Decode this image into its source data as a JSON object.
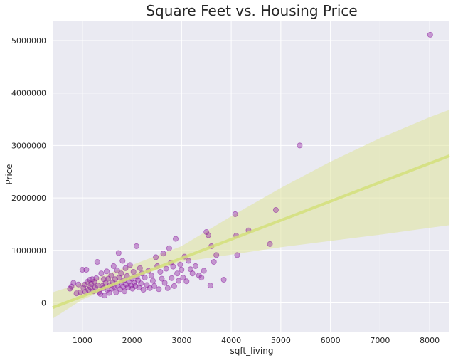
{
  "chart_data": {
    "type": "scatter",
    "title": "Square Feet vs. Housing Price",
    "xlabel": "sqft_living",
    "ylabel": "Price",
    "xlim": [
      400,
      8400
    ],
    "ylim": [
      -550000,
      5380000
    ],
    "xticks": [
      1000,
      2000,
      3000,
      4000,
      5000,
      6000,
      7000,
      8000
    ],
    "yticks": [
      0,
      1000000,
      2000000,
      3000000,
      4000000,
      5000000
    ],
    "grid": true,
    "background": "#eaeaf2",
    "point_color": "#8b1a9e",
    "line_color": "#d4df7a",
    "band_color": "#dfe39a",
    "points": [
      {
        "x": 750,
        "y": 270000
      },
      {
        "x": 780,
        "y": 310000
      },
      {
        "x": 820,
        "y": 380000
      },
      {
        "x": 880,
        "y": 180000
      },
      {
        "x": 920,
        "y": 350000
      },
      {
        "x": 960,
        "y": 200000
      },
      {
        "x": 1000,
        "y": 630000
      },
      {
        "x": 1020,
        "y": 290000
      },
      {
        "x": 1050,
        "y": 350000
      },
      {
        "x": 1060,
        "y": 210000
      },
      {
        "x": 1080,
        "y": 630000
      },
      {
        "x": 1100,
        "y": 400000
      },
      {
        "x": 1120,
        "y": 250000
      },
      {
        "x": 1150,
        "y": 440000
      },
      {
        "x": 1160,
        "y": 300000
      },
      {
        "x": 1180,
        "y": 360000
      },
      {
        "x": 1200,
        "y": 450000
      },
      {
        "x": 1220,
        "y": 220000
      },
      {
        "x": 1240,
        "y": 400000
      },
      {
        "x": 1260,
        "y": 290000
      },
      {
        "x": 1280,
        "y": 470000
      },
      {
        "x": 1300,
        "y": 780000
      },
      {
        "x": 1310,
        "y": 330000
      },
      {
        "x": 1340,
        "y": 210000
      },
      {
        "x": 1360,
        "y": 170000
      },
      {
        "x": 1380,
        "y": 560000
      },
      {
        "x": 1400,
        "y": 320000
      },
      {
        "x": 1420,
        "y": 280000
      },
      {
        "x": 1430,
        "y": 450000
      },
      {
        "x": 1450,
        "y": 140000
      },
      {
        "x": 1470,
        "y": 380000
      },
      {
        "x": 1490,
        "y": 600000
      },
      {
        "x": 1500,
        "y": 250000
      },
      {
        "x": 1520,
        "y": 460000
      },
      {
        "x": 1540,
        "y": 190000
      },
      {
        "x": 1560,
        "y": 340000
      },
      {
        "x": 1580,
        "y": 520000
      },
      {
        "x": 1600,
        "y": 270000
      },
      {
        "x": 1610,
        "y": 390000
      },
      {
        "x": 1630,
        "y": 700000
      },
      {
        "x": 1650,
        "y": 300000
      },
      {
        "x": 1660,
        "y": 450000
      },
      {
        "x": 1680,
        "y": 200000
      },
      {
        "x": 1700,
        "y": 620000
      },
      {
        "x": 1710,
        "y": 330000
      },
      {
        "x": 1730,
        "y": 950000
      },
      {
        "x": 1740,
        "y": 480000
      },
      {
        "x": 1760,
        "y": 260000
      },
      {
        "x": 1780,
        "y": 560000
      },
      {
        "x": 1790,
        "y": 380000
      },
      {
        "x": 1810,
        "y": 800000
      },
      {
        "x": 1820,
        "y": 310000
      },
      {
        "x": 1840,
        "y": 430000
      },
      {
        "x": 1850,
        "y": 220000
      },
      {
        "x": 1870,
        "y": 660000
      },
      {
        "x": 1880,
        "y": 350000
      },
      {
        "x": 1900,
        "y": 510000
      },
      {
        "x": 1920,
        "y": 290000
      },
      {
        "x": 1940,
        "y": 400000
      },
      {
        "x": 1960,
        "y": 720000
      },
      {
        "x": 1980,
        "y": 330000
      },
      {
        "x": 2000,
        "y": 460000
      },
      {
        "x": 2010,
        "y": 270000
      },
      {
        "x": 2030,
        "y": 590000
      },
      {
        "x": 2050,
        "y": 380000
      },
      {
        "x": 2070,
        "y": 320000
      },
      {
        "x": 2090,
        "y": 1080000
      },
      {
        "x": 2100,
        "y": 500000
      },
      {
        "x": 2120,
        "y": 430000
      },
      {
        "x": 2140,
        "y": 290000
      },
      {
        "x": 2160,
        "y": 660000
      },
      {
        "x": 2180,
        "y": 370000
      },
      {
        "x": 2200,
        "y": 560000
      },
      {
        "x": 2230,
        "y": 250000
      },
      {
        "x": 2260,
        "y": 480000
      },
      {
        "x": 2300,
        "y": 340000
      },
      {
        "x": 2330,
        "y": 610000
      },
      {
        "x": 2360,
        "y": 280000
      },
      {
        "x": 2390,
        "y": 520000
      },
      {
        "x": 2420,
        "y": 420000
      },
      {
        "x": 2450,
        "y": 320000
      },
      {
        "x": 2480,
        "y": 870000
      },
      {
        "x": 2510,
        "y": 700000
      },
      {
        "x": 2540,
        "y": 260000
      },
      {
        "x": 2570,
        "y": 590000
      },
      {
        "x": 2600,
        "y": 460000
      },
      {
        "x": 2630,
        "y": 940000
      },
      {
        "x": 2660,
        "y": 380000
      },
      {
        "x": 2690,
        "y": 650000
      },
      {
        "x": 2720,
        "y": 280000
      },
      {
        "x": 2750,
        "y": 1040000
      },
      {
        "x": 2780,
        "y": 760000
      },
      {
        "x": 2800,
        "y": 470000
      },
      {
        "x": 2830,
        "y": 690000
      },
      {
        "x": 2850,
        "y": 320000
      },
      {
        "x": 2880,
        "y": 1220000
      },
      {
        "x": 2910,
        "y": 560000
      },
      {
        "x": 2940,
        "y": 420000
      },
      {
        "x": 2970,
        "y": 730000
      },
      {
        "x": 3000,
        "y": 630000
      },
      {
        "x": 3030,
        "y": 480000
      },
      {
        "x": 3060,
        "y": 880000
      },
      {
        "x": 3100,
        "y": 410000
      },
      {
        "x": 3140,
        "y": 800000
      },
      {
        "x": 3180,
        "y": 640000
      },
      {
        "x": 3220,
        "y": 560000
      },
      {
        "x": 3280,
        "y": 700000
      },
      {
        "x": 3350,
        "y": 520000
      },
      {
        "x": 3400,
        "y": 480000
      },
      {
        "x": 3450,
        "y": 610000
      },
      {
        "x": 3500,
        "y": 1350000
      },
      {
        "x": 3540,
        "y": 1290000
      },
      {
        "x": 3580,
        "y": 330000
      },
      {
        "x": 3600,
        "y": 1080000
      },
      {
        "x": 3650,
        "y": 780000
      },
      {
        "x": 3700,
        "y": 910000
      },
      {
        "x": 3850,
        "y": 440000
      },
      {
        "x": 4080,
        "y": 1690000
      },
      {
        "x": 4100,
        "y": 1280000
      },
      {
        "x": 4120,
        "y": 910000
      },
      {
        "x": 4350,
        "y": 1380000
      },
      {
        "x": 4780,
        "y": 1120000
      },
      {
        "x": 4900,
        "y": 1770000
      },
      {
        "x": 5380,
        "y": 3000000
      },
      {
        "x": 8010,
        "y": 5110000
      }
    ],
    "regression": {
      "intercept": -237000,
      "slope": 362
    },
    "confidence_band": {
      "x": [
        400,
        1000,
        2000,
        3000,
        4000,
        5000,
        6000,
        7000,
        8000,
        8400
      ],
      "lower": [
        -300000,
        60000,
        470000,
        780000,
        920000,
        1060000,
        1180000,
        1300000,
        1430000,
        1480000
      ],
      "upper": [
        200000,
        380000,
        720000,
        1080000,
        1650000,
        2190000,
        2690000,
        3140000,
        3540000,
        3680000
      ]
    }
  }
}
